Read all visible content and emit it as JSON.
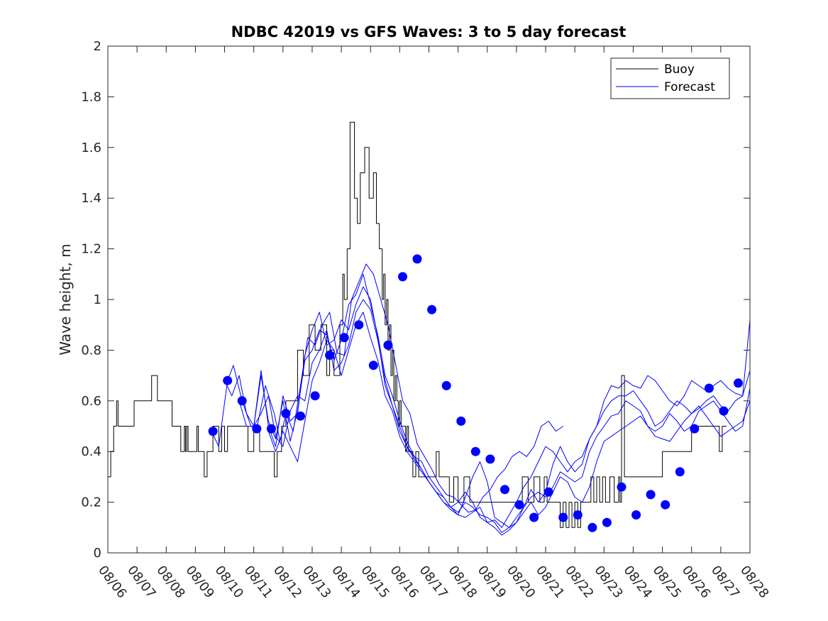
{
  "chart_data": {
    "type": "line",
    "title": "NDBC 42019 vs GFS Waves: 3 to 5 day forecast",
    "xlabel": "",
    "ylabel": "Wave height, m",
    "x_tick_labels": [
      "08/06",
      "08/07",
      "08/08",
      "08/09",
      "08/10",
      "08/11",
      "08/12",
      "08/13",
      "08/14",
      "08/15",
      "08/16",
      "08/17",
      "08/18",
      "08/19",
      "08/20",
      "08/21",
      "08/22",
      "08/23",
      "08/24",
      "08/25",
      "08/26",
      "08/27",
      "08/28"
    ],
    "y_tick_labels": [
      "0",
      "0.2",
      "0.4",
      "0.6",
      "0.8",
      "1",
      "1.2",
      "1.4",
      "1.6",
      "1.8",
      "2"
    ],
    "xlim": [
      0,
      22
    ],
    "ylim": [
      0,
      2
    ],
    "legend": {
      "position": "top-right",
      "entries": [
        "Buoy",
        "Forecast"
      ]
    },
    "colors": {
      "buoy": "#000000",
      "forecast": "#0000ff",
      "markers": "#0000ff"
    },
    "series": [
      {
        "name": "Buoy",
        "style": "step",
        "x": [
          0,
          0.1,
          0.2,
          0.3,
          0.35,
          0.45,
          0.6,
          0.75,
          0.9,
          1.2,
          1.5,
          1.7,
          1.9,
          2.2,
          2.5,
          2.62,
          2.66,
          2.7,
          2.75,
          2.8,
          2.9,
          3.0,
          3.05,
          3.1,
          3.2,
          3.3,
          3.4,
          3.6,
          3.8,
          3.9,
          4.0,
          4.1,
          4.2,
          4.3,
          4.6,
          4.8,
          5.0,
          5.2,
          5.5,
          5.7,
          5.8,
          5.95,
          6.1,
          6.3,
          6.5,
          6.7,
          6.9,
          7.1,
          7.3,
          7.5,
          7.6,
          7.75,
          7.95,
          8.05,
          8.1,
          8.2,
          8.3,
          8.45,
          8.55,
          8.65,
          8.8,
          8.95,
          9.1,
          9.2,
          9.3,
          9.4,
          9.45,
          9.5,
          9.55,
          9.6,
          9.65,
          9.7,
          9.75,
          9.8,
          9.85,
          9.9,
          9.95,
          10.0,
          10.05,
          10.1,
          10.15,
          10.2,
          10.25,
          10.3,
          10.35,
          10.45,
          10.55,
          10.65,
          10.75,
          10.85,
          10.95,
          11.05,
          11.15,
          11.25,
          11.35,
          11.45,
          11.55,
          11.7,
          11.85,
          12.0,
          12.2,
          12.4,
          12.6,
          12.8,
          13.0,
          13.2,
          13.35,
          13.5,
          13.65,
          13.8,
          14.0,
          14.2,
          14.4,
          14.6,
          14.8,
          14.95,
          15.05,
          15.2,
          15.35,
          15.5,
          15.6,
          15.7,
          15.8,
          15.9,
          16.0,
          16.1,
          16.2,
          16.35,
          16.45,
          16.55,
          16.65,
          16.75,
          16.85,
          16.95,
          17.05,
          17.2,
          17.35,
          17.5,
          17.55,
          17.6,
          17.7,
          17.85,
          18.0,
          18.2,
          18.4,
          18.6,
          18.8,
          19.0,
          19.2,
          19.4,
          19.6,
          19.8,
          20.0,
          20.2,
          20.4,
          20.6,
          20.8,
          20.95,
          21.05
        ],
        "y": [
          0.3,
          0.4,
          0.5,
          0.6,
          0.5,
          0.5,
          0.5,
          0.5,
          0.6,
          0.6,
          0.7,
          0.6,
          0.6,
          0.5,
          0.4,
          0.5,
          0.4,
          0.5,
          0.4,
          0.4,
          0.4,
          0.4,
          0.5,
          0.4,
          0.4,
          0.3,
          0.4,
          0.5,
          0.4,
          0.5,
          0.4,
          0.5,
          0.5,
          0.5,
          0.5,
          0.4,
          0.5,
          0.4,
          0.4,
          0.3,
          0.4,
          0.5,
          0.6,
          0.6,
          0.8,
          0.7,
          0.9,
          0.8,
          0.9,
          0.7,
          0.8,
          0.7,
          0.9,
          1.1,
          1.0,
          1.2,
          1.7,
          1.4,
          1.3,
          1.5,
          1.6,
          1.4,
          1.5,
          1.3,
          1.2,
          1.0,
          1.1,
          0.9,
          1.0,
          0.8,
          0.9,
          0.7,
          0.8,
          0.6,
          0.7,
          0.6,
          0.5,
          0.6,
          0.5,
          0.5,
          0.5,
          0.4,
          0.5,
          0.4,
          0.4,
          0.3,
          0.4,
          0.3,
          0.3,
          0.3,
          0.3,
          0.3,
          0.3,
          0.4,
          0.3,
          0.3,
          0.3,
          0.2,
          0.3,
          0.2,
          0.3,
          0.2,
          0.2,
          0.2,
          0.2,
          0.2,
          0.2,
          0.2,
          0.2,
          0.2,
          0.2,
          0.3,
          0.2,
          0.3,
          0.2,
          0.3,
          0.2,
          0.2,
          0.2,
          0.1,
          0.2,
          0.1,
          0.2,
          0.1,
          0.2,
          0.1,
          0.2,
          0.2,
          0.2,
          0.3,
          0.2,
          0.3,
          0.2,
          0.3,
          0.2,
          0.3,
          0.2,
          0.3,
          0.2,
          0.7,
          0.3,
          0.3,
          0.3,
          0.3,
          0.3,
          0.3,
          0.3,
          0.4,
          0.4,
          0.4,
          0.4,
          0.4,
          0.5,
          0.5,
          0.5,
          0.5,
          0.5,
          0.4,
          0.5
        ]
      },
      {
        "name": "Forecast 1",
        "style": "line",
        "x": [
          3.55,
          3.8,
          4.1,
          4.3,
          4.6,
          4.9,
          5.1,
          5.4,
          5.7,
          5.9,
          6.1,
          6.35,
          6.6,
          6.85,
          7.1,
          7.35,
          7.6,
          7.85,
          8.1,
          8.35,
          8.6,
          8.85,
          9.1,
          9.35,
          9.6,
          9.85,
          10.1,
          10.35,
          10.6,
          10.85,
          11.1,
          11.35,
          11.6,
          11.85,
          12.1,
          12.35,
          12.6,
          12.85,
          13.1,
          13.35,
          13.6,
          13.85,
          14.1,
          14.35,
          14.6,
          14.85,
          15.1,
          15.35,
          15.6
        ],
        "y": [
          0.48,
          0.42,
          0.68,
          0.74,
          0.6,
          0.5,
          0.49,
          0.66,
          0.55,
          0.44,
          0.55,
          0.48,
          0.66,
          0.85,
          0.82,
          0.9,
          0.95,
          0.79,
          0.78,
          1.0,
          1.07,
          1.14,
          1.1,
          1.0,
          0.9,
          0.75,
          0.6,
          0.55,
          0.43,
          0.38,
          0.33,
          0.27,
          0.23,
          0.22,
          0.19,
          0.16,
          0.17,
          0.22,
          0.25,
          0.3,
          0.33,
          0.38,
          0.4,
          0.38,
          0.42,
          0.5,
          0.52,
          0.48,
          0.5
        ]
      },
      {
        "name": "Forecast 2",
        "style": "line",
        "x": [
          4.0,
          4.25,
          4.5,
          4.75,
          5.0,
          5.25,
          5.5,
          5.75,
          6.0,
          6.25,
          6.5,
          6.75,
          7.0,
          7.25,
          7.5,
          7.75,
          8.0,
          8.25,
          8.5,
          8.75,
          9.0,
          9.25,
          9.5,
          9.75,
          10.0,
          10.25,
          10.5,
          10.75,
          11.0,
          11.25,
          11.5,
          11.75,
          12.0,
          12.25,
          12.5,
          12.75,
          13.0,
          13.25,
          13.5,
          13.75,
          14.0,
          14.25,
          14.5,
          14.75,
          15.0,
          15.25,
          15.5,
          15.75,
          16.0,
          16.25,
          16.5,
          16.75,
          17.0,
          17.25,
          17.5,
          17.75,
          18.0,
          18.25,
          18.5,
          18.75,
          19.0,
          19.25,
          19.5,
          19.75,
          20.0,
          20.25,
          20.5,
          20.75,
          21.0,
          21.25,
          21.5,
          21.75,
          22.0
        ],
        "y": [
          0.68,
          0.62,
          0.7,
          0.55,
          0.5,
          0.72,
          0.5,
          0.42,
          0.62,
          0.52,
          0.55,
          0.78,
          0.88,
          0.95,
          0.82,
          0.84,
          0.92,
          0.88,
          0.98,
          1.05,
          1.0,
          0.85,
          0.66,
          0.58,
          0.5,
          0.42,
          0.38,
          0.36,
          0.3,
          0.26,
          0.22,
          0.18,
          0.15,
          0.22,
          0.3,
          0.36,
          0.28,
          0.14,
          0.12,
          0.1,
          0.12,
          0.18,
          0.25,
          0.2,
          0.24,
          0.35,
          0.42,
          0.36,
          0.32,
          0.35,
          0.45,
          0.5,
          0.6,
          0.66,
          0.65,
          0.68,
          0.66,
          0.65,
          0.7,
          0.68,
          0.64,
          0.6,
          0.58,
          0.62,
          0.68,
          0.66,
          0.64,
          0.66,
          0.68,
          0.65,
          0.63,
          0.62,
          0.92
        ]
      },
      {
        "name": "Forecast 3",
        "style": "line",
        "x": [
          4.5,
          4.75,
          5.0,
          5.25,
          5.5,
          5.75,
          6.0,
          6.25,
          6.5,
          6.75,
          7.0,
          7.25,
          7.5,
          7.75,
          8.0,
          8.25,
          8.5,
          8.75,
          9.0,
          9.25,
          9.5,
          9.75,
          10.0,
          10.25,
          10.5,
          10.75,
          11.0,
          11.25,
          11.5,
          11.75,
          12.0,
          12.25,
          12.5,
          12.75,
          13.0,
          13.25,
          13.5,
          13.75,
          14.0,
          14.25,
          14.5,
          14.75,
          15.0,
          15.25,
          15.5,
          15.75,
          16.0,
          16.25,
          16.5,
          16.75,
          17.0,
          17.25,
          17.5,
          17.75,
          18.0,
          18.25,
          18.5,
          18.75,
          19.0,
          19.25,
          19.5,
          19.75,
          20.0,
          20.25,
          20.5,
          20.75,
          21.0,
          21.25,
          21.5,
          21.75,
          22.0
        ],
        "y": [
          0.6,
          0.5,
          0.5,
          0.7,
          0.52,
          0.45,
          0.6,
          0.44,
          0.56,
          0.76,
          0.8,
          0.88,
          0.86,
          0.76,
          0.84,
          0.98,
          1.02,
          1.1,
          0.98,
          0.86,
          0.7,
          0.62,
          0.52,
          0.44,
          0.38,
          0.33,
          0.28,
          0.24,
          0.2,
          0.18,
          0.2,
          0.24,
          0.2,
          0.14,
          0.12,
          0.13,
          0.1,
          0.15,
          0.2,
          0.26,
          0.3,
          0.36,
          0.42,
          0.4,
          0.36,
          0.32,
          0.36,
          0.38,
          0.45,
          0.5,
          0.56,
          0.6,
          0.62,
          0.62,
          0.64,
          0.6,
          0.56,
          0.5,
          0.52,
          0.56,
          0.6,
          0.58,
          0.55,
          0.57,
          0.6,
          0.62,
          0.58,
          0.56,
          0.6,
          0.62,
          0.72
        ]
      },
      {
        "name": "Forecast 4",
        "style": "line",
        "x": [
          5.0,
          5.25,
          5.5,
          5.75,
          6.0,
          6.25,
          6.5,
          6.75,
          7.0,
          7.25,
          7.5,
          7.75,
          8.0,
          8.25,
          8.5,
          8.75,
          9.0,
          9.25,
          9.5,
          9.75,
          10.0,
          10.25,
          10.5,
          10.75,
          11.0,
          11.25,
          11.5,
          11.75,
          12.0,
          12.25,
          12.5,
          12.75,
          13.0,
          13.25,
          13.5,
          13.75,
          14.0,
          14.25,
          14.5,
          14.75,
          15.0,
          15.25,
          15.5,
          15.75,
          16.0,
          16.25,
          16.5,
          16.75,
          17.0,
          17.25,
          17.5,
          17.75,
          18.0,
          18.25,
          18.5,
          18.75,
          19.0,
          19.25,
          19.5,
          19.75,
          20.0,
          20.25,
          20.5,
          20.75,
          21.0,
          21.25,
          21.5,
          21.75,
          22.0
        ],
        "y": [
          0.5,
          0.55,
          0.62,
          0.46,
          0.42,
          0.56,
          0.62,
          0.6,
          0.75,
          0.8,
          0.88,
          0.72,
          0.75,
          0.82,
          0.95,
          1.0,
          0.96,
          0.84,
          0.68,
          0.58,
          0.48,
          0.42,
          0.37,
          0.33,
          0.28,
          0.24,
          0.22,
          0.18,
          0.16,
          0.2,
          0.18,
          0.15,
          0.14,
          0.12,
          0.08,
          0.1,
          0.14,
          0.18,
          0.22,
          0.24,
          0.22,
          0.26,
          0.32,
          0.3,
          0.28,
          0.3,
          0.4,
          0.46,
          0.5,
          0.54,
          0.55,
          0.6,
          0.58,
          0.56,
          0.5,
          0.48,
          0.5,
          0.55,
          0.52,
          0.48,
          0.5,
          0.56,
          0.58,
          0.6,
          0.56,
          0.52,
          0.48,
          0.5,
          0.65
        ]
      },
      {
        "name": "Forecast 5",
        "style": "line",
        "x": [
          5.5,
          5.75,
          6.0,
          6.25,
          6.5,
          6.75,
          7.0,
          7.25,
          7.5,
          7.75,
          8.0,
          8.25,
          8.5,
          8.75,
          9.0,
          9.25,
          9.5,
          9.75,
          10.0,
          10.25,
          10.5,
          10.75,
          11.0,
          11.25,
          11.5,
          11.75,
          12.0,
          12.25,
          12.5,
          12.75,
          13.0,
          13.25,
          13.5,
          13.75,
          14.0,
          14.25,
          14.5,
          14.75,
          15.0,
          15.25,
          15.5,
          15.75,
          16.0,
          16.25,
          16.5,
          16.75,
          17.0,
          17.25,
          17.5,
          17.75,
          18.0,
          18.25,
          18.5,
          18.75,
          19.0,
          19.25,
          19.5,
          19.75,
          20.0,
          20.25,
          20.5,
          20.75,
          21.0,
          21.25,
          21.5,
          21.75,
          22.0
        ],
        "y": [
          0.48,
          0.4,
          0.48,
          0.42,
          0.36,
          0.52,
          0.68,
          0.75,
          0.84,
          0.8,
          0.7,
          0.8,
          0.9,
          0.95,
          0.85,
          0.76,
          0.62,
          0.56,
          0.46,
          0.4,
          0.36,
          0.32,
          0.28,
          0.24,
          0.2,
          0.17,
          0.15,
          0.14,
          0.16,
          0.18,
          0.12,
          0.1,
          0.07,
          0.09,
          0.12,
          0.16,
          0.2,
          0.15,
          0.18,
          0.24,
          0.3,
          0.28,
          0.22,
          0.2,
          0.26,
          0.36,
          0.44,
          0.46,
          0.48,
          0.5,
          0.52,
          0.54,
          0.5,
          0.46,
          0.45,
          0.44,
          0.48,
          0.52,
          0.55,
          0.58,
          0.54,
          0.5,
          0.46,
          0.48,
          0.5,
          0.52,
          0.6
        ]
      }
    ],
    "markers": {
      "x": [
        3.6,
        4.1,
        4.6,
        5.1,
        5.6,
        6.1,
        6.6,
        7.1,
        7.6,
        8.1,
        8.6,
        9.1,
        9.6,
        10.1,
        10.6,
        11.1,
        11.6,
        12.1,
        12.6,
        13.1,
        13.6,
        14.1,
        14.6,
        15.1,
        15.6,
        16.1,
        16.6,
        17.1,
        17.6,
        18.1,
        18.6,
        19.1,
        19.6,
        20.1,
        20.6,
        21.1,
        21.6
      ],
      "y": [
        0.48,
        0.68,
        0.6,
        0.49,
        0.49,
        0.55,
        0.54,
        0.62,
        0.78,
        0.85,
        0.9,
        0.74,
        0.82,
        1.09,
        1.16,
        0.96,
        0.66,
        0.52,
        0.4,
        0.37,
        0.25,
        0.19,
        0.14,
        0.24,
        0.14,
        0.15,
        0.1,
        0.12,
        0.26,
        0.15,
        0.23,
        0.19,
        0.32,
        0.49,
        0.65,
        0.56,
        0.67
      ]
    }
  }
}
